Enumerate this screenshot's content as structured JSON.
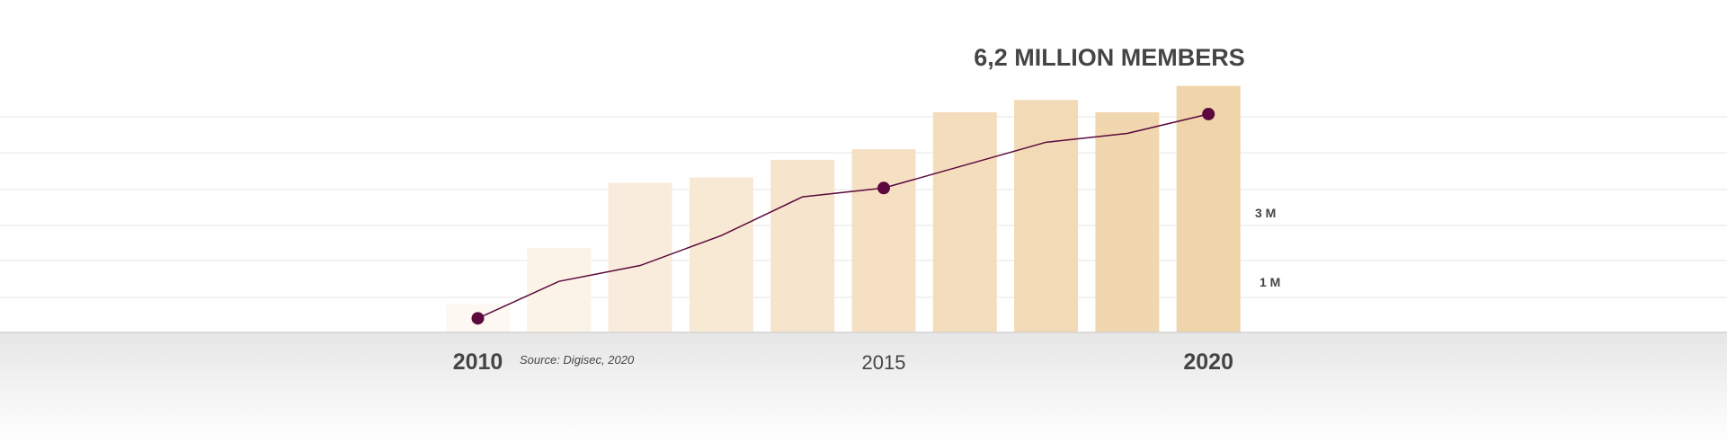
{
  "chart_data": {
    "type": "bar",
    "title": "6,2 MILLION MEMBERS",
    "source": "Source: Digisec, 2020",
    "categories": [
      "2010",
      "",
      "",
      "",
      "",
      "2015",
      "",
      "",
      "",
      "2020"
    ],
    "bold_categories": [
      "2010",
      "2020"
    ],
    "y_tick_labels": [
      {
        "label": "3 M",
        "value": 3
      },
      {
        "label": "1 M",
        "value": 1
      }
    ],
    "ylim": [
      0,
      8
    ],
    "grid": true,
    "series": [
      {
        "type": "bar",
        "values": [
          0.8,
          2.4,
          4.25,
          4.4,
          4.9,
          5.2,
          6.25,
          6.6,
          6.25,
          7.0
        ],
        "colors": [
          "#fdf8f1",
          "#fcf3e7",
          "#f9ecdc",
          "#f8e9d5",
          "#f6e4cc",
          "#f5e0c4",
          "#f4ddbc",
          "#f3dab6",
          "#f1d7b0",
          "#f0d4aa"
        ]
      },
      {
        "type": "line",
        "values": [
          0.4,
          1.45,
          1.9,
          2.75,
          3.85,
          4.1,
          4.75,
          5.4,
          5.65,
          6.2
        ],
        "markers_at": [
          "2010",
          "2015",
          "2020"
        ],
        "color": "#5c0a3d"
      }
    ]
  }
}
